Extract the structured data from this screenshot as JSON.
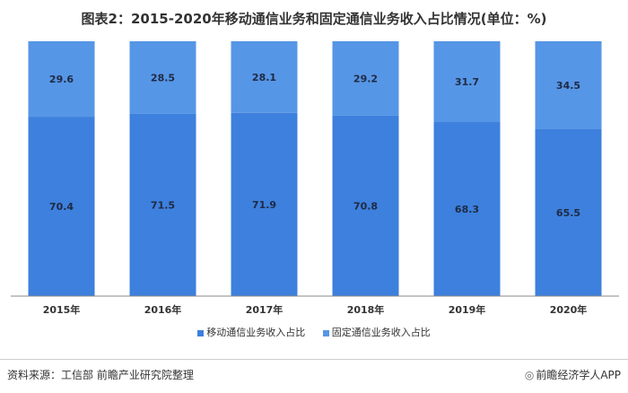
{
  "title": "图表2：2015-2020年移动通信业务和固定通信业务收入占比情况(单位：%)",
  "source": "资料来源：工信部 前瞻产业研究院整理",
  "brand": "前瞻经济学人APP",
  "brand_icon": "brand-logo-icon",
  "colors": {
    "mobile": "#3d80dd",
    "fixed": "#5696e6"
  },
  "chart_data": {
    "type": "bar",
    "stacked": true,
    "categories": [
      "2015年",
      "2016年",
      "2017年",
      "2018年",
      "2019年",
      "2020年"
    ],
    "series": [
      {
        "name": "移动通信业务收入占比",
        "values": [
          70.4,
          71.5,
          71.9,
          70.8,
          68.3,
          65.5
        ]
      },
      {
        "name": "固定通信业务收入占比",
        "values": [
          29.6,
          28.5,
          28.1,
          29.2,
          31.7,
          34.5
        ]
      }
    ],
    "ylim": [
      0,
      100
    ],
    "grid": false,
    "legend": "bottom"
  }
}
